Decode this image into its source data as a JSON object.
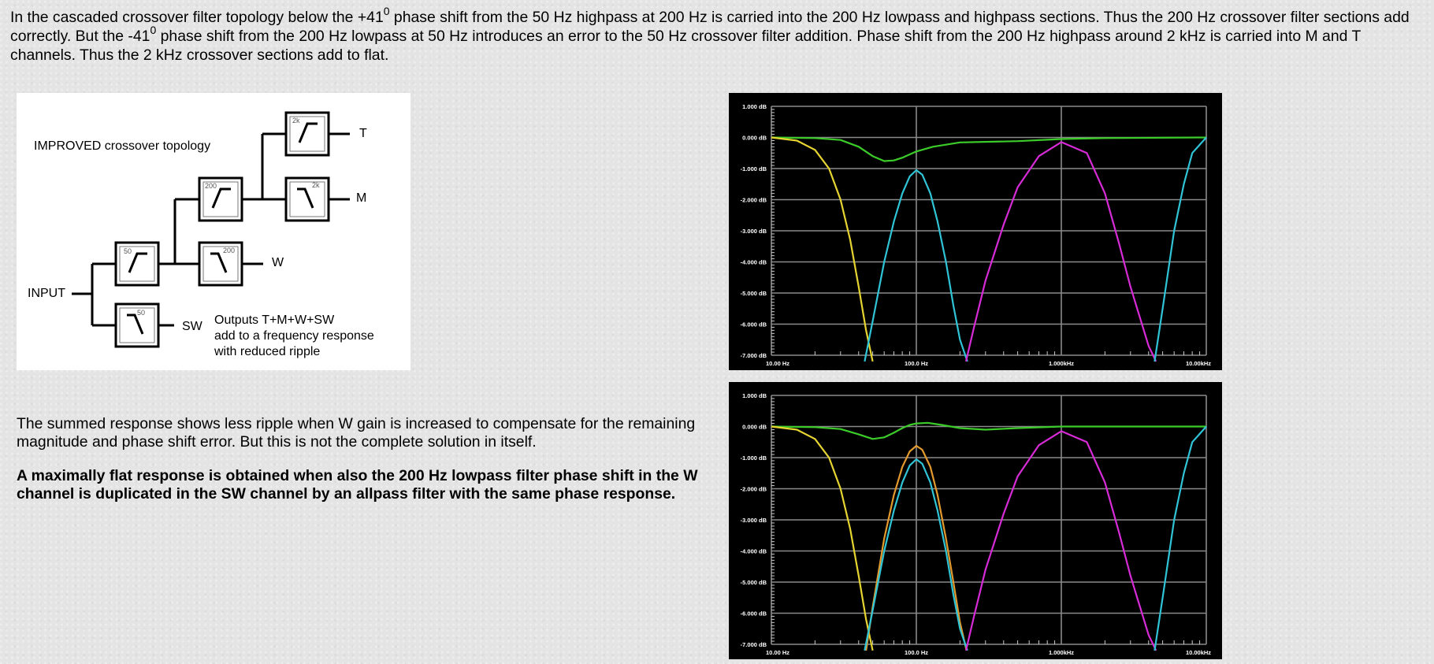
{
  "intro": {
    "s1a": "In the cascaded crossover filter topology below the +41",
    "s1b": "0",
    "s1c": " phase shift from the 50 Hz highpass at 200 Hz is carried into the 200 Hz lowpass and highpass sections. Thus the 200 Hz crossover filter sections add correctly. But the -41",
    "s1d": "0",
    "s1e": " phase shift from the 200 Hz lowpass at 50 Hz introduces an error to the 50 Hz crossover filter addition. Phase shift from the 200 Hz highpass around 2 kHz is carried into M and T channels. Thus the 2 kHz crossover sections add to flat."
  },
  "diagram": {
    "title": "IMPROVED crossover topology",
    "input_label": "INPUT",
    "outputs": [
      "T",
      "M",
      "W",
      "SW"
    ],
    "filters": {
      "hp50": "50",
      "lp50": "50",
      "hp200": "200",
      "lp200": "200",
      "hp2k": "2k",
      "lp2k": "2k"
    },
    "note_lines": [
      "Outputs T+M+W+SW",
      "add to a frequency response",
      "with reduced ripple"
    ]
  },
  "paragraph1": "The summed response shows less ripple when W gain is increased to compensate for the remaining magnitude and phase shift error. But this is not the complete solution in itself.",
  "paragraph2": "A maximally flat response is obtained when also the 200 Hz lowpass filter phase shift in the W channel is duplicated in the SW channel by an allpass filter with the same phase response.",
  "colors": {
    "sum": "#3ccc2a",
    "sw_lowpass": "#e6d431",
    "w_bandpass": "#2fc4d6",
    "m_bandpass": "#d62bd6",
    "t_highpass": "#2fc4d6",
    "w_bandpass_gain": "#e29a2e",
    "grid": "#8a8a8a",
    "axis_text": "#ffffff"
  },
  "chart_data": [
    {
      "type": "line",
      "title": "",
      "y_tick_labels": [
        "1.000 dB",
        "0.000 dB",
        "-1.000 dB",
        "-2.000 dB",
        "-3.000 dB",
        "-4.000 dB",
        "-5.000 dB",
        "-6.000 dB",
        "-7.000 dB"
      ],
      "x_tick_labels": [
        "10.00 Hz",
        "100.0 Hz",
        "1.000kHz",
        "10.00kHz"
      ],
      "xlim": [
        10,
        10000
      ],
      "ylim": [
        -7,
        1
      ],
      "xscale": "log",
      "grid": true,
      "series": [
        {
          "color": "#3ccc2a",
          "x": [
            10,
            20,
            30,
            40,
            50,
            60,
            70,
            80,
            100,
            130,
            200,
            500,
            1000,
            2000,
            10000
          ],
          "y": [
            0,
            -0.02,
            -0.08,
            -0.3,
            -0.6,
            -0.76,
            -0.74,
            -0.65,
            -0.45,
            -0.3,
            -0.16,
            -0.12,
            -0.05,
            -0.02,
            0
          ]
        },
        {
          "color": "#e6d431",
          "x": [
            10,
            15,
            20,
            25,
            30,
            35,
            40,
            45,
            50
          ],
          "y": [
            0,
            -0.1,
            -0.4,
            -1.0,
            -2.0,
            -3.3,
            -4.8,
            -6.2,
            -7.2
          ]
        },
        {
          "color": "#2fc4d6",
          "x": [
            44,
            50,
            60,
            70,
            80,
            90,
            100,
            110,
            125,
            140,
            160,
            180,
            200,
            225
          ],
          "y": [
            -7.2,
            -5.9,
            -4.0,
            -2.7,
            -1.8,
            -1.25,
            -1.05,
            -1.2,
            -1.8,
            -2.7,
            -4.0,
            -5.4,
            -6.5,
            -7.2
          ]
        },
        {
          "color": "#d62bd6",
          "x": [
            220,
            250,
            300,
            400,
            500,
            700,
            1000,
            1500,
            2000,
            2500,
            3000,
            4000,
            4500
          ],
          "y": [
            -7.2,
            -6.1,
            -4.6,
            -2.8,
            -1.6,
            -0.6,
            -0.15,
            -0.5,
            -1.8,
            -3.4,
            -4.8,
            -6.7,
            -7.2
          ]
        },
        {
          "color": "#2fc4d6",
          "x": [
            4400,
            5000,
            6000,
            7000,
            8000,
            10000
          ],
          "y": [
            -7.2,
            -5.5,
            -3.0,
            -1.5,
            -0.5,
            0
          ]
        }
      ]
    },
    {
      "type": "line",
      "title": "",
      "y_tick_labels": [
        "1.000 dB",
        "0.000 dB",
        "-1.000 dB",
        "-2.000 dB",
        "-3.000 dB",
        "-4.000 dB",
        "-5.000 dB",
        "-6.000 dB",
        "-7.000 dB"
      ],
      "x_tick_labels": [
        "10.00 Hz",
        "100.0 Hz",
        "1.000kHz",
        "10.00kHz"
      ],
      "xlim": [
        10,
        10000
      ],
      "ylim": [
        -7,
        1
      ],
      "xscale": "log",
      "grid": true,
      "series": [
        {
          "color": "#3ccc2a",
          "x": [
            10,
            20,
            30,
            40,
            50,
            60,
            70,
            80,
            90,
            100,
            120,
            150,
            200,
            300,
            500,
            1000,
            10000
          ],
          "y": [
            0,
            -0.02,
            -0.08,
            -0.25,
            -0.4,
            -0.35,
            -0.2,
            -0.05,
            0.05,
            0.1,
            0.12,
            0.05,
            -0.05,
            -0.1,
            -0.05,
            0,
            0
          ]
        },
        {
          "color": "#e6d431",
          "x": [
            10,
            15,
            20,
            25,
            30,
            35,
            40,
            45,
            50
          ],
          "y": [
            0,
            -0.1,
            -0.4,
            -1.0,
            -2.0,
            -3.3,
            -4.8,
            -6.2,
            -7.2
          ]
        },
        {
          "color": "#e29a2e",
          "x": [
            45,
            50,
            60,
            70,
            80,
            90,
            100,
            110,
            125,
            140,
            160,
            180,
            200,
            222
          ],
          "y": [
            -7.2,
            -5.8,
            -3.6,
            -2.2,
            -1.3,
            -0.8,
            -0.62,
            -0.75,
            -1.3,
            -2.2,
            -3.6,
            -5.0,
            -6.3,
            -7.2
          ]
        },
        {
          "color": "#2fc4d6",
          "x": [
            44,
            50,
            60,
            70,
            80,
            90,
            100,
            110,
            125,
            140,
            160,
            180,
            200,
            225
          ],
          "y": [
            -7.2,
            -5.9,
            -4.0,
            -2.7,
            -1.8,
            -1.25,
            -1.05,
            -1.2,
            -1.8,
            -2.7,
            -4.0,
            -5.4,
            -6.5,
            -7.2
          ]
        },
        {
          "color": "#d62bd6",
          "x": [
            220,
            250,
            300,
            400,
            500,
            700,
            1000,
            1500,
            2000,
            2500,
            3000,
            4000,
            4500
          ],
          "y": [
            -7.2,
            -6.1,
            -4.6,
            -2.8,
            -1.6,
            -0.6,
            -0.15,
            -0.5,
            -1.8,
            -3.4,
            -4.8,
            -6.7,
            -7.2
          ]
        },
        {
          "color": "#2fc4d6",
          "x": [
            4400,
            5000,
            6000,
            7000,
            8000,
            10000
          ],
          "y": [
            -7.2,
            -5.5,
            -3.0,
            -1.5,
            -0.5,
            0
          ]
        }
      ]
    }
  ]
}
